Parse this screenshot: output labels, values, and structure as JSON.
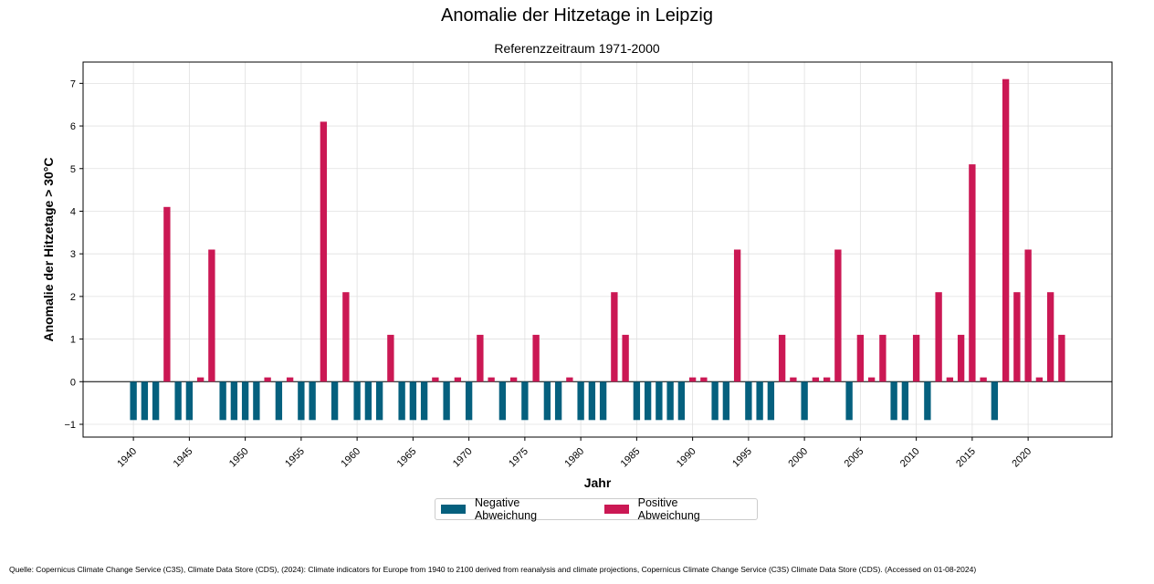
{
  "chart_data": {
    "type": "bar",
    "suptitle": "Anomalie der Hitzetage in Leipzig",
    "title": "Referenzzeitraum 1971-2000",
    "xlabel": "Jahr",
    "ylabel": "Anomalie der Hitzetage > 30°C",
    "xlim": [
      1935.5,
      2027.5
    ],
    "ylim": [
      -1.3,
      7.5
    ],
    "xticks": [
      "1940",
      "1945",
      "1950",
      "1955",
      "1960",
      "1965",
      "1970",
      "1975",
      "1980",
      "1985",
      "1990",
      "1995",
      "2000",
      "2005",
      "2010",
      "2015",
      "2020"
    ],
    "yticks": [
      "−1",
      "0",
      "1",
      "2",
      "3",
      "4",
      "5",
      "6",
      "7"
    ],
    "grid": true,
    "legend_position": "below",
    "colors": {
      "negative": "#05607e",
      "positive": "#cb1854",
      "zero_line": "#000000",
      "grid": "#e0e0e0"
    },
    "years": [
      1940,
      1941,
      1942,
      1943,
      1944,
      1945,
      1946,
      1947,
      1948,
      1949,
      1950,
      1951,
      1952,
      1953,
      1954,
      1955,
      1956,
      1957,
      1958,
      1959,
      1960,
      1961,
      1962,
      1963,
      1964,
      1965,
      1966,
      1967,
      1968,
      1969,
      1970,
      1971,
      1972,
      1973,
      1974,
      1975,
      1976,
      1977,
      1978,
      1979,
      1980,
      1981,
      1982,
      1983,
      1984,
      1985,
      1986,
      1987,
      1988,
      1989,
      1990,
      1991,
      1992,
      1993,
      1994,
      1995,
      1996,
      1997,
      1998,
      1999,
      2000,
      2001,
      2002,
      2003,
      2004,
      2005,
      2006,
      2007,
      2008,
      2009,
      2010,
      2011,
      2012,
      2013,
      2014,
      2015,
      2016,
      2017,
      2018,
      2019,
      2020,
      2021,
      2022,
      2023
    ],
    "values": [
      -0.9,
      -0.9,
      -0.9,
      4.1,
      -0.9,
      -0.9,
      0.1,
      3.1,
      -0.9,
      -0.9,
      -0.9,
      -0.9,
      0.1,
      -0.9,
      0.1,
      -0.9,
      -0.9,
      6.1,
      -0.9,
      2.1,
      -0.9,
      -0.9,
      -0.9,
      1.1,
      -0.9,
      -0.9,
      -0.9,
      0.1,
      -0.9,
      0.1,
      -0.9,
      1.1,
      0.1,
      -0.9,
      0.1,
      -0.9,
      1.1,
      -0.9,
      -0.9,
      0.1,
      -0.9,
      -0.9,
      -0.9,
      2.1,
      1.1,
      -0.9,
      -0.9,
      -0.9,
      -0.9,
      -0.9,
      0.1,
      0.1,
      -0.9,
      -0.9,
      3.1,
      -0.9,
      -0.9,
      -0.9,
      1.1,
      0.1,
      -0.9,
      0.1,
      0.1,
      3.1,
      -0.9,
      1.1,
      0.1,
      1.1,
      -0.9,
      -0.9,
      1.1,
      -0.9,
      2.1,
      0.1,
      1.1,
      5.1,
      0.1,
      -0.9,
      7.1,
      2.1,
      3.1,
      0.1,
      2.1,
      1.1
    ],
    "series": [
      {
        "name": "Negative Abweichung",
        "color": "#05607e"
      },
      {
        "name": "Positive Abweichung",
        "color": "#cb1854"
      }
    ]
  },
  "source": "Quelle: Copernicus Climate Change Service (C3S), Climate Data Store (CDS), (2024): Climate indicators for Europe from 1940 to 2100 derived from reanalysis and climate projections, Copernicus Climate Change Service (C3S) Climate Data Store (CDS). (Accessed on 01-08-2024)"
}
